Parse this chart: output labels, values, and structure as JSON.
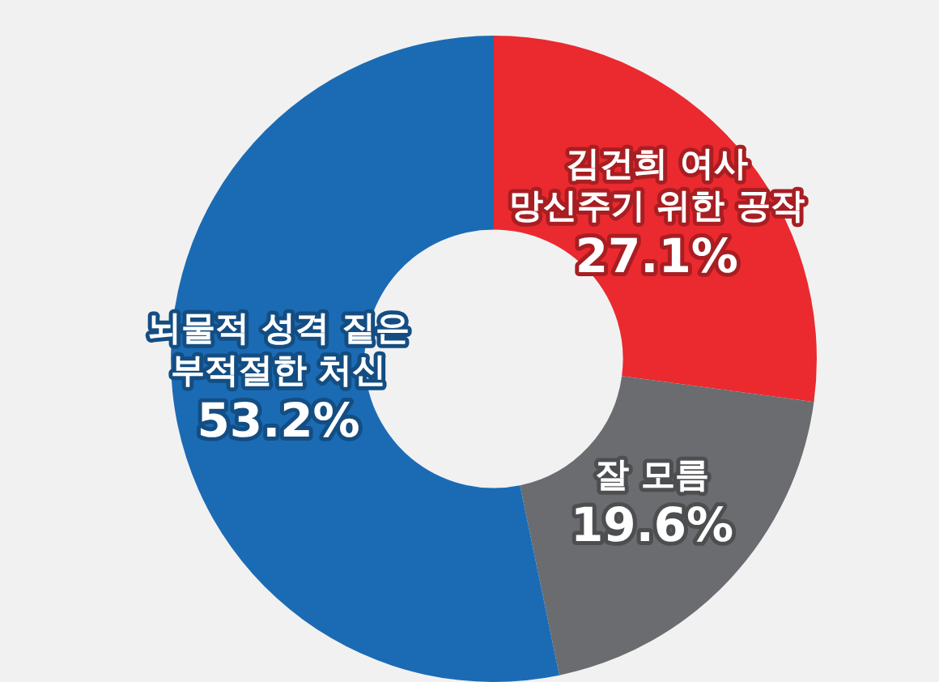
{
  "chart_data": {
    "type": "donut",
    "categories": [
      "김건희 여사 망신주기 위한 공작",
      "잘 모름",
      "뇌물적 성격 짙은 부적절한 처신"
    ],
    "values": [
      27.1,
      19.6,
      53.2
    ],
    "colors": [
      "#ea2a2f",
      "#6b6c6f",
      "#1b6bb4"
    ],
    "value_labels": [
      "27.1%",
      "19.6%",
      "53.2%"
    ],
    "legend": false
  }
}
